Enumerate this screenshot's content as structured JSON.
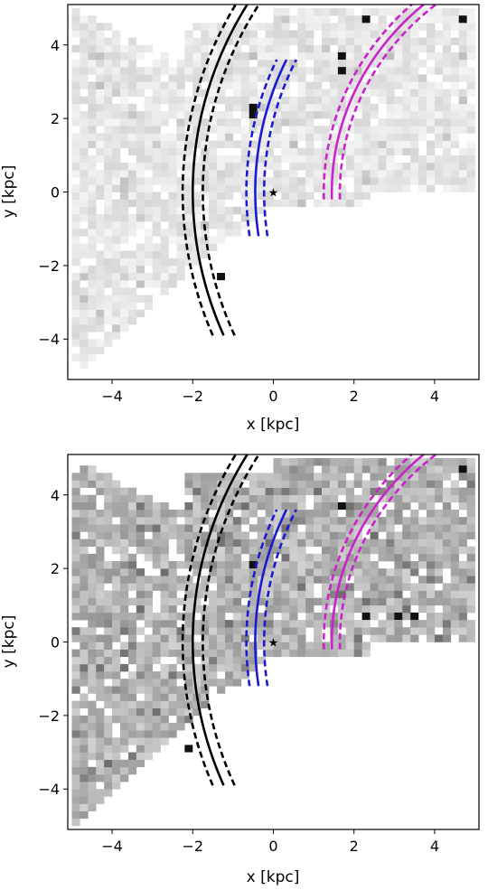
{
  "chart_data": [
    {
      "type": "heatmap",
      "panel": "top",
      "xlabel": "x [kpc]",
      "ylabel": "y [kpc]",
      "xlim": [
        -5.1,
        5.1
      ],
      "ylim": [
        -5.1,
        5.1
      ],
      "xticks": [
        -4,
        -2,
        0,
        2,
        4
      ],
      "yticks": [
        -4,
        -2,
        0,
        2,
        4
      ],
      "xtick_labels": [
        "−4",
        "−2",
        "0",
        "2",
        "4"
      ],
      "ytick_labels": [
        "−4",
        "−2",
        "0",
        "2",
        "4"
      ],
      "grid": false,
      "colormap": "greys",
      "cell_size_kpc": 0.2,
      "intensity_scale": "light",
      "dense_cells": [
        [
          -0.6,
          2.2
        ],
        [
          -0.6,
          2.0
        ],
        [
          1.6,
          3.6
        ],
        [
          1.6,
          3.2
        ],
        [
          -1.4,
          -2.4
        ],
        [
          4.6,
          4.6
        ],
        [
          2.2,
          4.6
        ]
      ],
      "sun_marker": {
        "x": 0.0,
        "y": 0.0,
        "color": "#c8c832"
      },
      "arms": [
        {
          "color": "#000000",
          "r_center": 6.3,
          "half_width": 0.25,
          "y_range": [
            -3.9,
            5.1
          ]
        },
        {
          "color": "#1a1ad4",
          "r_center": 3.0,
          "half_width": 0.22,
          "y_range": [
            -1.2,
            3.6
          ]
        },
        {
          "color": "#cc22cc",
          "r_center": 4.7,
          "half_width": 0.2,
          "y_range": [
            -0.2,
            5.1
          ]
        }
      ]
    },
    {
      "type": "heatmap",
      "panel": "bottom",
      "xlabel": "x [kpc]",
      "ylabel": "y [kpc]",
      "xlim": [
        -5.1,
        5.1
      ],
      "ylim": [
        -5.1,
        5.1
      ],
      "xticks": [
        -4,
        -2,
        0,
        2,
        4
      ],
      "yticks": [
        -4,
        -2,
        0,
        2,
        4
      ],
      "xtick_labels": [
        "−4",
        "−2",
        "0",
        "2",
        "4"
      ],
      "ytick_labels": [
        "−4",
        "−2",
        "0",
        "2",
        "4"
      ],
      "grid": false,
      "colormap": "greys",
      "cell_size_kpc": 0.2,
      "intensity_scale": "dark",
      "dense_cells": [
        [
          3.0,
          0.6
        ],
        [
          3.4,
          0.6
        ],
        [
          2.2,
          0.6
        ],
        [
          1.6,
          3.6
        ],
        [
          -2.2,
          -3.0
        ],
        [
          4.6,
          4.6
        ],
        [
          -0.6,
          2.0
        ]
      ],
      "sun_marker": {
        "x": 0.0,
        "y": 0.0,
        "color": "#c8c832"
      },
      "arms": [
        {
          "color": "#000000",
          "r_center": 6.3,
          "half_width": 0.25,
          "y_range": [
            -3.9,
            5.1
          ]
        },
        {
          "color": "#1a1ad4",
          "r_center": 3.0,
          "half_width": 0.22,
          "y_range": [
            -1.2,
            3.6
          ]
        },
        {
          "color": "#cc22cc",
          "r_center": 4.7,
          "half_width": 0.2,
          "y_range": [
            -0.2,
            5.1
          ]
        }
      ]
    }
  ]
}
